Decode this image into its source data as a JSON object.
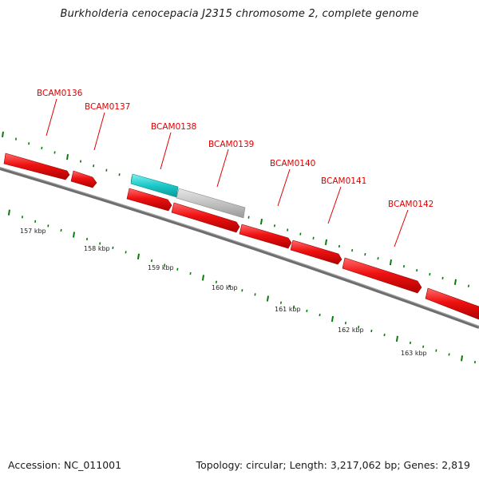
{
  "title": "Burkholderia cenocepacia J2315 chromosome 2, complete genome",
  "footer": {
    "accession": "Accession: NC_011001",
    "summary": "Topology: circular; Length: 3,217,062 bp; Genes: 2,819"
  },
  "colors": {
    "gene_label": "#e00000",
    "gene_red": "#ee1111",
    "gene_teal": "#1cc8c8",
    "gene_gray": "#bdbdbd",
    "backbone": "#707070",
    "tick": "#0a7a0a",
    "scale_text": "#222222"
  },
  "genes": [
    {
      "label": "BCAM0136"
    },
    {
      "label": "BCAM0137"
    },
    {
      "label": "BCAM0138"
    },
    {
      "label": "BCAM0139"
    },
    {
      "label": "BCAM0140"
    },
    {
      "label": "BCAM0141"
    },
    {
      "label": "BCAM0142"
    }
  ],
  "scale_labels": [
    "157 kbp",
    "158 kbp",
    "159 kbp",
    "160 kbp",
    "161 kbp",
    "162 kbp",
    "163 kbp"
  ]
}
